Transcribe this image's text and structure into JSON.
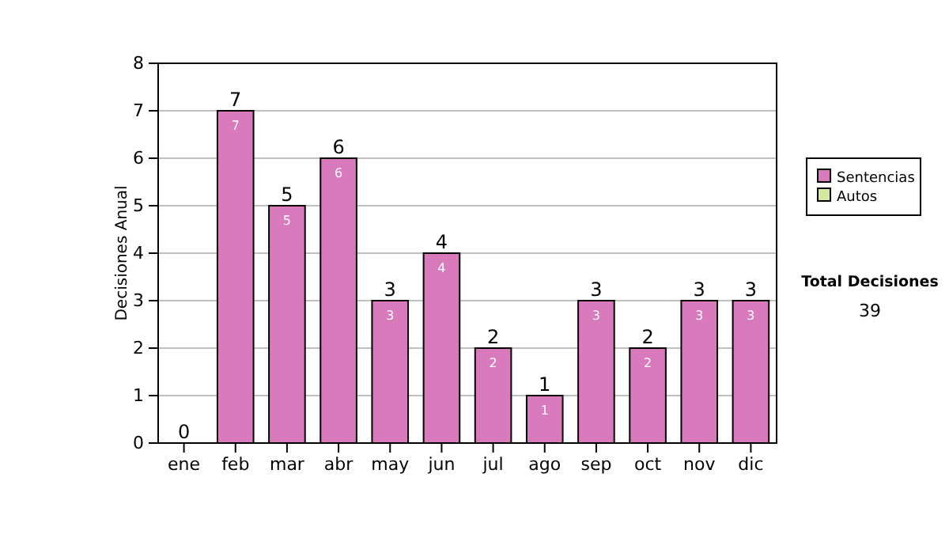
{
  "chart_data": {
    "type": "bar",
    "stacked": true,
    "ylabel": "Decisiones Anual",
    "categories": [
      "ene",
      "feb",
      "mar",
      "abr",
      "may",
      "jun",
      "jul",
      "ago",
      "sep",
      "oct",
      "nov",
      "dic"
    ],
    "series": [
      {
        "name": "Sentencias",
        "color": "#d87abb",
        "values": [
          0,
          7,
          5,
          6,
          3,
          4,
          2,
          1,
          3,
          2,
          3,
          3
        ],
        "value_labels": [
          null,
          "7",
          "5",
          "6",
          "3",
          "4",
          "2",
          "1",
          "3",
          "2",
          "3",
          "3"
        ]
      },
      {
        "name": "Autos",
        "color": "#d4e8a0",
        "values": [
          0,
          0,
          0,
          0,
          0,
          0,
          0,
          0,
          0,
          0,
          0,
          0
        ]
      }
    ],
    "totals": [
      "0",
      "7",
      "5",
      "6",
      "3",
      "4",
      "2",
      "1",
      "3",
      "2",
      "3",
      "3"
    ],
    "ylim": [
      0,
      8
    ],
    "yticks": [
      0,
      1,
      2,
      3,
      4,
      5,
      6,
      7,
      8
    ],
    "grid": "y",
    "legend": "right",
    "annotations": [
      "Total Decisiones",
      "39"
    ]
  }
}
